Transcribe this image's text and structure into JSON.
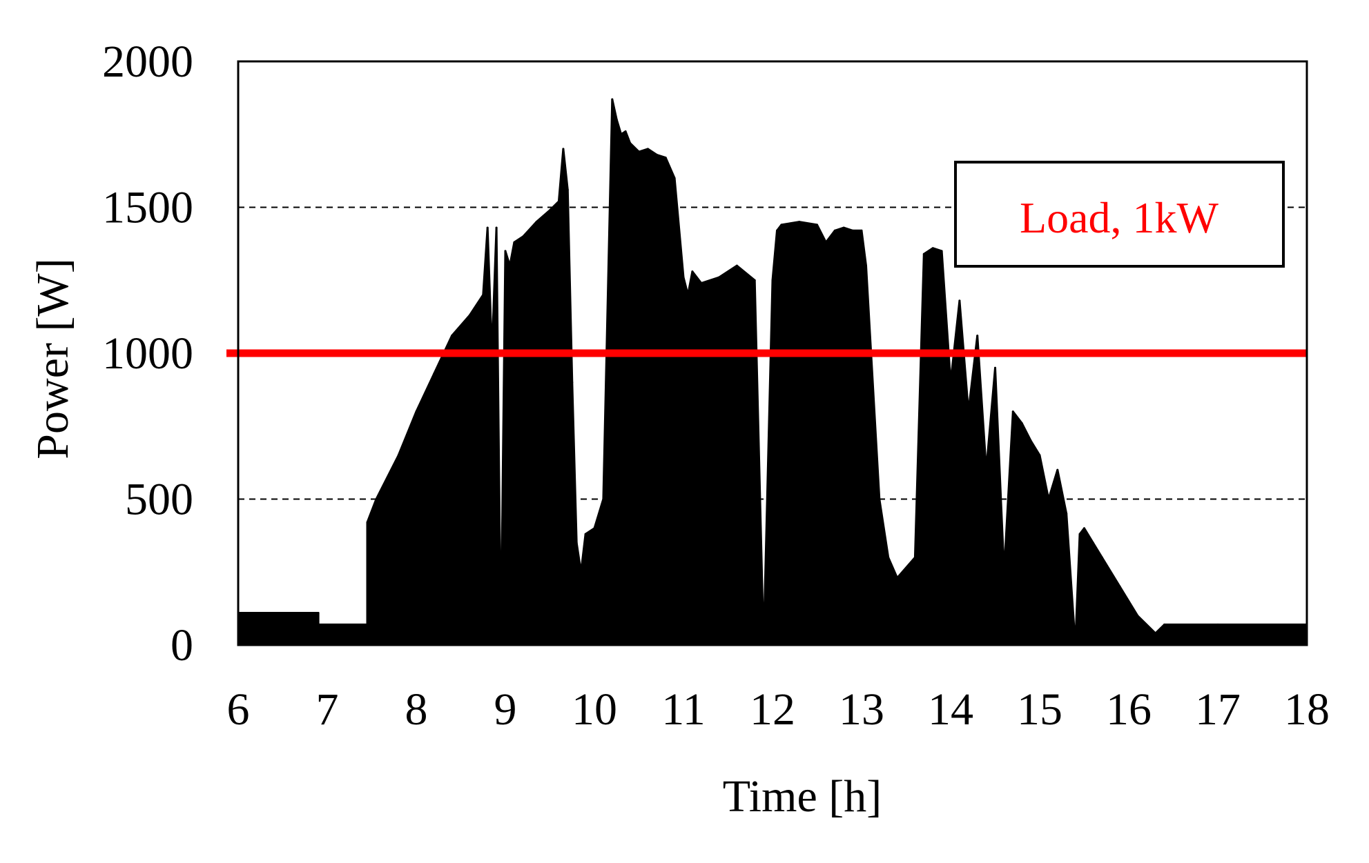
{
  "chart_data": {
    "type": "area",
    "title": "",
    "xlabel": "Time [h]",
    "ylabel": "Power [W]",
    "xlim": [
      6,
      18
    ],
    "ylim": [
      0,
      2000
    ],
    "x_ticks": [
      "6",
      "7",
      "8",
      "9",
      "10",
      "11",
      "12",
      "13",
      "14",
      "15",
      "16",
      "17",
      "18"
    ],
    "y_ticks": [
      "0",
      "500",
      "1000",
      "1500",
      "2000"
    ],
    "gridlines_y": [
      500,
      1500
    ],
    "grid": "dashed horizontal",
    "series": [
      {
        "name": "",
        "color": "#000000",
        "x": [
          6.0,
          6.9,
          6.9,
          7.45,
          7.45,
          7.55,
          7.8,
          8.0,
          8.2,
          8.4,
          8.6,
          8.75,
          8.8,
          8.85,
          8.9,
          8.95,
          9.0,
          9.05,
          9.1,
          9.2,
          9.35,
          9.5,
          9.6,
          9.65,
          9.7,
          9.75,
          9.8,
          9.85,
          9.9,
          10.0,
          10.1,
          10.2,
          10.25,
          10.3,
          10.35,
          10.4,
          10.5,
          10.6,
          10.7,
          10.8,
          10.9,
          11.0,
          11.05,
          11.1,
          11.2,
          11.4,
          11.6,
          11.8,
          11.9,
          12.0,
          12.05,
          12.1,
          12.3,
          12.5,
          12.6,
          12.7,
          12.8,
          12.9,
          13.0,
          13.05,
          13.2,
          13.3,
          13.4,
          13.6,
          13.7,
          13.8,
          13.9,
          14.0,
          14.1,
          14.2,
          14.3,
          14.4,
          14.5,
          14.6,
          14.7,
          14.8,
          14.9,
          15.0,
          15.1,
          15.2,
          15.3,
          15.4,
          15.45,
          15.5,
          15.6,
          15.7,
          15.9,
          16.1,
          16.3,
          16.4,
          17.0,
          18.0
        ],
        "values": [
          110,
          110,
          70,
          70,
          420,
          500,
          650,
          800,
          930,
          1060,
          1130,
          1200,
          1430,
          1000,
          1430,
          0,
          1350,
          1300,
          1380,
          1400,
          1450,
          1490,
          1520,
          1700,
          1560,
          900,
          350,
          250,
          380,
          400,
          500,
          1870,
          1800,
          1750,
          1760,
          1720,
          1690,
          1700,
          1680,
          1670,
          1600,
          1260,
          1200,
          1280,
          1240,
          1260,
          1300,
          1250,
          0,
          1250,
          1420,
          1440,
          1450,
          1440,
          1380,
          1420,
          1430,
          1420,
          1420,
          1300,
          500,
          300,
          230,
          300,
          1340,
          1360,
          1350,
          900,
          1180,
          800,
          1060,
          600,
          950,
          250,
          800,
          760,
          700,
          650,
          500,
          600,
          450,
          0,
          380,
          400,
          350,
          300,
          200,
          100,
          40,
          70,
          70,
          70
        ]
      }
    ],
    "reference_line": {
      "y": 1000,
      "color": "#ff0000",
      "label": "Load, 1kW"
    },
    "legend": {
      "text": "Load, 1kW",
      "color": "#ff0000",
      "placement": "top-right"
    }
  }
}
